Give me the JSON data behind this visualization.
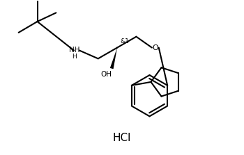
{
  "background_color": "#ffffff",
  "line_color": "#000000",
  "line_width": 1.5,
  "fig_width": 3.5,
  "fig_height": 2.23,
  "dpi": 100,
  "hcl_text": "HCl",
  "stereocenter_label": "&1",
  "oh_label": "OH",
  "nh_label": "NH",
  "o_label": "O",
  "h_label": "H"
}
